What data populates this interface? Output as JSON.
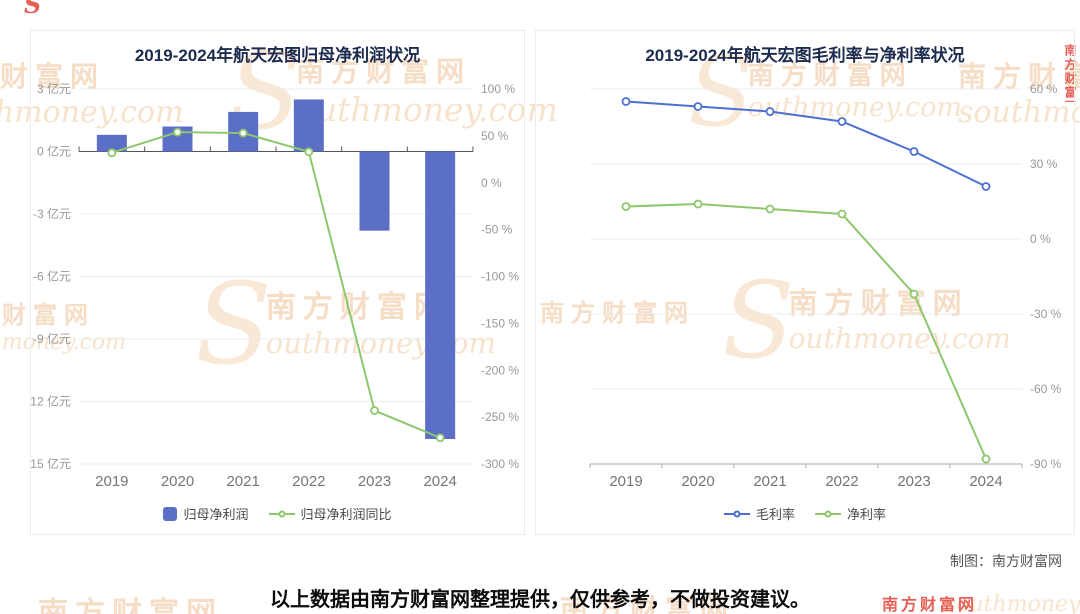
{
  "page": {
    "disclaimer": "以上数据由南方财富网整理提供，仅供参考，不做投资建议。",
    "credit": "制图：南方财富网"
  },
  "watermark": {
    "brand": "南方财富网",
    "domain": "southmoney.com",
    "domain_rest": "outhmoney.com",
    "s_glyph": "S",
    "color": "#f0c9a0",
    "stamp_color": "#e0453a"
  },
  "chart_data": [
    {
      "type": "bar",
      "title": "2019-2024年航天宏图归母净利润状况",
      "categories": [
        "2019",
        "2020",
        "2021",
        "2022",
        "2023",
        "2024"
      ],
      "series": [
        {
          "name": "归母净利润",
          "kind": "bar",
          "axis": "left",
          "color": "#5b6fc7",
          "values": [
            0.8,
            1.2,
            1.9,
            2.5,
            -3.8,
            -13.8
          ]
        },
        {
          "name": "归母净利润同比",
          "kind": "line",
          "axis": "right",
          "color": "#8cc76d",
          "values": [
            32,
            54,
            53,
            33,
            -243,
            -272
          ]
        }
      ],
      "left_axis": {
        "unit": "亿元",
        "min": -15,
        "max": 3,
        "ticks": [
          3,
          0,
          -3,
          -6,
          -9,
          -12,
          -15
        ]
      },
      "right_axis": {
        "unit": "%",
        "min": -300,
        "max": 100,
        "ticks": [
          100,
          50,
          0,
          -50,
          -100,
          -150,
          -200,
          -250,
          -300
        ]
      },
      "grid_axis": "left",
      "x_axis_on_zero": true,
      "legend_position": "bottom"
    },
    {
      "type": "line",
      "title": "2019-2024年航天宏图毛利率与净利率状况",
      "categories": [
        "2019",
        "2020",
        "2021",
        "2022",
        "2023",
        "2024"
      ],
      "series": [
        {
          "name": "毛利率",
          "kind": "line",
          "axis": "right",
          "color": "#4c6fd1",
          "values": [
            55,
            53,
            51,
            47,
            35,
            21
          ]
        },
        {
          "name": "净利率",
          "kind": "line",
          "axis": "right",
          "color": "#8cc76d",
          "values": [
            13,
            14,
            12,
            10,
            -22,
            -88
          ]
        }
      ],
      "right_axis": {
        "unit": "%",
        "min": -90,
        "max": 60,
        "ticks": [
          60,
          30,
          0,
          -30,
          -60,
          -90
        ]
      },
      "grid_axis": "right",
      "x_axis_on_zero": false,
      "legend_position": "bottom"
    }
  ]
}
